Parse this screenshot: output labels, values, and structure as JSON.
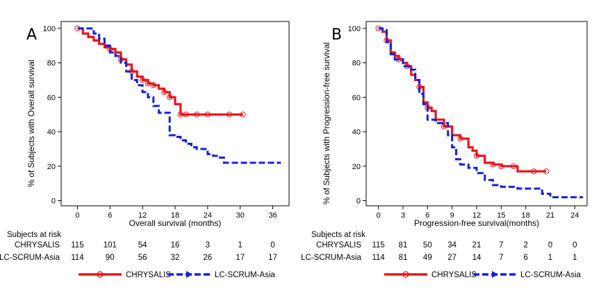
{
  "chart_data": [
    {
      "type": "line",
      "panel_letter": "A",
      "xlabel": "Overall survival (months)",
      "ylabel": "% of Subjects with Overall survival",
      "xlim": [
        -3,
        39
      ],
      "ylim": [
        -3,
        104
      ],
      "x_ticks": [
        0,
        6,
        12,
        18,
        24,
        30,
        36
      ],
      "y_ticks": [
        0,
        20,
        40,
        60,
        80,
        100
      ],
      "grid": false,
      "series": [
        {
          "name": "CHRYSALIS",
          "color": "#e8141c",
          "style": "solid",
          "censored_marks": true,
          "x": [
            0,
            1,
            2,
            3,
            4,
            5,
            6,
            7,
            8,
            9,
            10,
            11,
            12,
            13,
            14,
            15,
            16,
            17,
            18,
            19,
            20,
            24,
            28,
            30.5
          ],
          "y": [
            100,
            97,
            95,
            93,
            91,
            89,
            88,
            86,
            82,
            79,
            75,
            72,
            70,
            68,
            67,
            65,
            63,
            60,
            56,
            50,
            50,
            50,
            50,
            50
          ],
          "censor_x": [
            0,
            6,
            8,
            10,
            12,
            13,
            14,
            16,
            17,
            19,
            20,
            22,
            24,
            28,
            30.5
          ]
        },
        {
          "name": "LC-SCRUM-Asia",
          "color": "#1520d8",
          "style": "dashed",
          "censored_marks": false,
          "x": [
            0,
            2,
            3,
            4,
            5,
            6,
            7,
            8,
            9,
            10,
            11,
            12,
            13,
            14,
            15,
            16,
            17,
            18,
            19,
            20,
            21,
            22,
            24,
            25,
            26,
            27,
            28,
            30,
            33,
            37.5
          ],
          "y": [
            100,
            100,
            97,
            94,
            90,
            86,
            84,
            80,
            75,
            70,
            67,
            63,
            60,
            55,
            51,
            51,
            38,
            37,
            35,
            33,
            31,
            30,
            27,
            26,
            25,
            22,
            22,
            22,
            22,
            22
          ]
        }
      ],
      "risk_table": {
        "title": "Subjects at risk",
        "rows": [
          {
            "label": "CHRYSALIS",
            "values": [
              "115",
              "101",
              "54",
              "16",
              "3",
              "1",
              "0"
            ]
          },
          {
            "label": "LC-SCRUM-Asia",
            "values": [
              "114",
              "90",
              "56",
              "32",
              "26",
              "17",
              "17"
            ]
          }
        ]
      },
      "legend": {
        "placement": "bottom",
        "entries": [
          "CHRYSALIS",
          "LC-SCRUM-Asia"
        ]
      }
    },
    {
      "type": "line",
      "panel_letter": "B",
      "xlabel": "Progression-free survival(months)",
      "ylabel": "% of Subjects with Progression-free survival",
      "xlim": [
        -1.5,
        25.5
      ],
      "ylim": [
        -3,
        104
      ],
      "x_ticks": [
        0,
        3,
        6,
        9,
        12,
        15,
        18,
        21,
        24
      ],
      "y_ticks": [
        0,
        20,
        40,
        60,
        80,
        100
      ],
      "grid": false,
      "series": [
        {
          "name": "CHRYSALIS",
          "color": "#e8141c",
          "style": "solid",
          "censored_marks": true,
          "x": [
            0,
            0.5,
            1,
            1.5,
            2,
            2.5,
            3,
            3.5,
            4,
            4.5,
            5,
            5.5,
            6,
            6.5,
            7,
            8,
            9,
            10,
            11,
            11.5,
            12,
            13,
            14,
            15,
            16,
            17,
            19,
            20.5
          ],
          "y": [
            100,
            98,
            93,
            86,
            84,
            82,
            80,
            78,
            73,
            70,
            66,
            57,
            54,
            52,
            47,
            43,
            38,
            36,
            31,
            29,
            26,
            22,
            21,
            20,
            20,
            17,
            17,
            17
          ],
          "censor_x": [
            0,
            1,
            2.5,
            3.5,
            5,
            6,
            8,
            10,
            12,
            14,
            15,
            16.5,
            19,
            20.5
          ]
        },
        {
          "name": "LC-SCRUM-Asia",
          "color": "#1520d8",
          "style": "dashed",
          "censored_marks": false,
          "x": [
            0,
            0.5,
            1,
            1.5,
            2,
            3,
            4,
            4.5,
            5,
            5.5,
            6,
            7,
            8,
            8.5,
            9,
            9.5,
            10,
            11,
            12,
            13,
            14,
            15,
            16,
            17,
            19,
            20,
            21,
            22,
            25
          ],
          "y": [
            100,
            99,
            92,
            85,
            82,
            78,
            76,
            70,
            62,
            56,
            47,
            45,
            45,
            38,
            31,
            24,
            21,
            19,
            16,
            12,
            9,
            8,
            8,
            7,
            7,
            4,
            2,
            2,
            2
          ]
        }
      ],
      "risk_table": {
        "title": "Subjects at risk",
        "rows": [
          {
            "label": "CHRYSALIS",
            "values": [
              "115",
              "81",
              "50",
              "34",
              "21",
              "7",
              "2",
              "0",
              "0"
            ]
          },
          {
            "label": "LC-SCRUM-Asia",
            "values": [
              "114",
              "81",
              "49",
              "27",
              "14",
              "7",
              "6",
              "1",
              "1"
            ]
          }
        ]
      },
      "legend": {
        "placement": "bottom",
        "entries": [
          "CHRYSALIS",
          "LC-SCRUM-Asia"
        ]
      }
    }
  ]
}
